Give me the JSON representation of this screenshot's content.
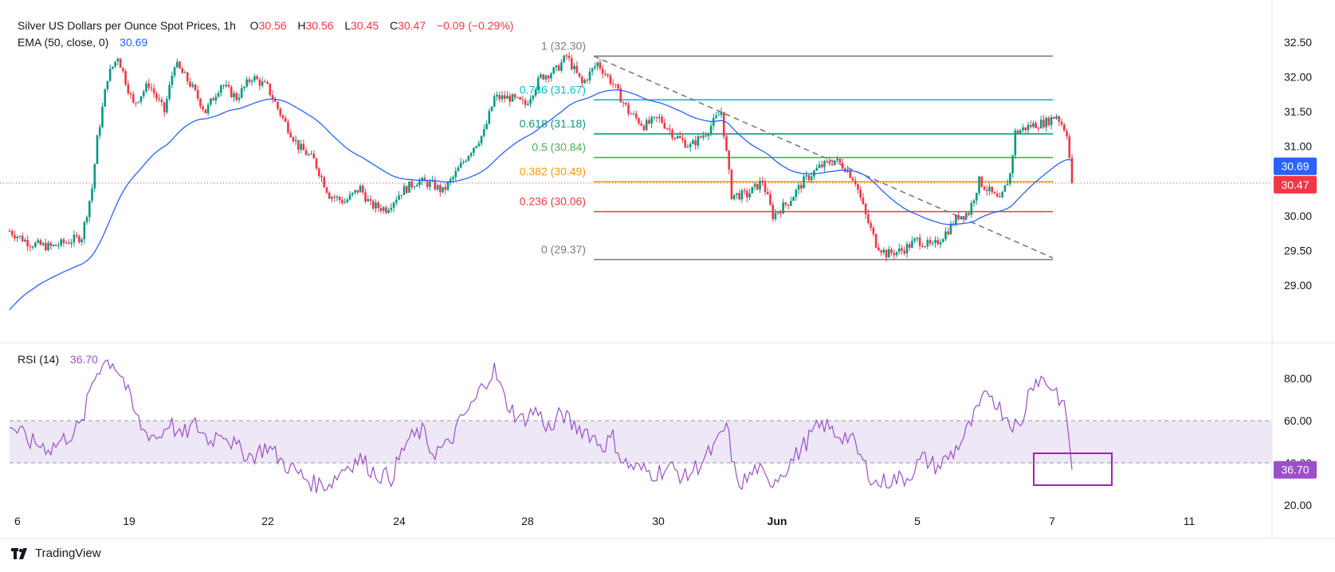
{
  "header": {
    "title": "Silver US Dollars per Ounce Spot Prices, 1h",
    "o_label": "O",
    "o_value": "30.56",
    "h_label": "H",
    "h_value": "30.56",
    "l_label": "L",
    "l_value": "30.45",
    "c_label": "C",
    "c_value": "30.47",
    "change": "−0.09 (−0.29%)",
    "ema_label": "EMA (50, close, 0)",
    "ema_value": "30.69",
    "rsi_label": "RSI (14)",
    "rsi_value": "36.70"
  },
  "footer": {
    "brand": "TradingView"
  },
  "colors": {
    "up": "#089981",
    "down": "#f23645",
    "ema": "#2962ff",
    "rsi": "#9c4fc8",
    "rsi_band": "#ede7f6",
    "fib_0": "#787b86",
    "fib_236": "#f23645",
    "fib_382": "#ff9800",
    "fib_5": "#4caf50",
    "fib_618": "#089981",
    "fib_786": "#00bcd4",
    "fib_1": "#787b86",
    "trend": "#787b86"
  },
  "chart_data": [
    {
      "type": "candlestick",
      "title": "Silver US Dollars per Ounce Spot Prices, 1h",
      "x_tick_labels": [
        "6",
        "19",
        "22",
        "24",
        "28",
        "30",
        "Jun",
        "5",
        "7",
        "11"
      ],
      "y_tick_labels": [
        "32.50",
        "32.00",
        "31.50",
        "31.00",
        "30.50",
        "30.00",
        "29.50",
        "29.00"
      ],
      "ylim": [
        28.75,
        32.75
      ],
      "last_price": 30.47,
      "last_price_label": "30.47",
      "ema_period": 50,
      "ema_last": 30.69,
      "ema_last_label": "30.69",
      "fibonacci_levels": [
        {
          "label": "1 (32.30)",
          "value": 32.3
        },
        {
          "label": "0.786 (31.67)",
          "value": 31.67
        },
        {
          "label": "0.618 (31.18)",
          "value": 31.18
        },
        {
          "label": "0.5 (30.84)",
          "value": 30.84
        },
        {
          "label": "0.382 (30.49)",
          "value": 30.49
        },
        {
          "label": "0.236 (30.06)",
          "value": 30.06
        },
        {
          "label": "0 (29.37)",
          "value": 29.37
        }
      ],
      "price_path_approx": [
        [
          0,
          29.78
        ],
        [
          8,
          29.6
        ],
        [
          16,
          29.55
        ],
        [
          22,
          29.62
        ],
        [
          28,
          29.7
        ],
        [
          32,
          30.4
        ],
        [
          34,
          31.1
        ],
        [
          38,
          32.0
        ],
        [
          42,
          32.3
        ],
        [
          48,
          31.6
        ],
        [
          54,
          31.9
        ],
        [
          60,
          31.5
        ],
        [
          64,
          32.2
        ],
        [
          70,
          31.9
        ],
        [
          76,
          31.5
        ],
        [
          82,
          31.9
        ],
        [
          88,
          31.7
        ],
        [
          94,
          32.0
        ],
        [
          100,
          31.85
        ],
        [
          106,
          31.4
        ],
        [
          112,
          31.0
        ],
        [
          118,
          30.8
        ],
        [
          124,
          30.3
        ],
        [
          130,
          30.2
        ],
        [
          136,
          30.4
        ],
        [
          140,
          30.15
        ],
        [
          146,
          30.1
        ],
        [
          152,
          30.35
        ],
        [
          158,
          30.5
        ],
        [
          164,
          30.45
        ],
        [
          168,
          30.35
        ],
        [
          172,
          30.55
        ],
        [
          178,
          30.9
        ],
        [
          184,
          31.2
        ],
        [
          188,
          31.7
        ],
        [
          194,
          31.7
        ],
        [
          200,
          31.6
        ],
        [
          206,
          32.0
        ],
        [
          212,
          32.1
        ],
        [
          216,
          32.3
        ],
        [
          222,
          31.9
        ],
        [
          228,
          32.2
        ],
        [
          234,
          31.9
        ],
        [
          240,
          31.5
        ],
        [
          246,
          31.3
        ],
        [
          252,
          31.4
        ],
        [
          258,
          31.15
        ],
        [
          264,
          31.0
        ],
        [
          270,
          31.2
        ],
        [
          276,
          31.5
        ],
        [
          280,
          30.3
        ],
        [
          286,
          30.3
        ],
        [
          292,
          30.5
        ],
        [
          296,
          30.0
        ],
        [
          302,
          30.2
        ],
        [
          308,
          30.5
        ],
        [
          314,
          30.7
        ],
        [
          320,
          30.8
        ],
        [
          324,
          30.7
        ],
        [
          328,
          30.5
        ],
        [
          332,
          30.0
        ],
        [
          336,
          29.6
        ],
        [
          340,
          29.45
        ],
        [
          346,
          29.5
        ],
        [
          352,
          29.65
        ],
        [
          358,
          29.55
        ],
        [
          364,
          29.8
        ],
        [
          368,
          30.0
        ],
        [
          372,
          30.05
        ],
        [
          376,
          30.5
        ],
        [
          380,
          30.35
        ],
        [
          384,
          30.2
        ],
        [
          388,
          30.6
        ],
        [
          390,
          31.2
        ],
        [
          396,
          31.3
        ],
        [
          402,
          31.35
        ],
        [
          406,
          31.45
        ],
        [
          410,
          31.2
        ],
        [
          412,
          30.47
        ]
      ]
    },
    {
      "type": "line",
      "title": "RSI (14)",
      "y_tick_labels": [
        "80.00",
        "60.00",
        "40.00",
        "20.00"
      ],
      "ylim": [
        15,
        93
      ],
      "bands": [
        40,
        60
      ],
      "last_value": 36.7,
      "last_value_label": "36.70",
      "values_approx": [
        [
          0,
          58
        ],
        [
          8,
          50
        ],
        [
          16,
          47
        ],
        [
          22,
          52
        ],
        [
          28,
          58
        ],
        [
          32,
          78
        ],
        [
          36,
          88
        ],
        [
          40,
          88
        ],
        [
          44,
          80
        ],
        [
          48,
          65
        ],
        [
          52,
          55
        ],
        [
          58,
          52
        ],
        [
          62,
          60
        ],
        [
          66,
          52
        ],
        [
          72,
          58
        ],
        [
          78,
          50
        ],
        [
          82,
          56
        ],
        [
          88,
          47
        ],
        [
          94,
          43
        ],
        [
          100,
          48
        ],
        [
          106,
          40
        ],
        [
          112,
          35
        ],
        [
          118,
          30
        ],
        [
          124,
          30
        ],
        [
          130,
          38
        ],
        [
          136,
          42
        ],
        [
          142,
          35
        ],
        [
          148,
          33
        ],
        [
          154,
          50
        ],
        [
          160,
          55
        ],
        [
          164,
          45
        ],
        [
          170,
          48
        ],
        [
          176,
          62
        ],
        [
          180,
          68
        ],
        [
          184,
          78
        ],
        [
          188,
          84
        ],
        [
          192,
          70
        ],
        [
          198,
          60
        ],
        [
          204,
          65
        ],
        [
          210,
          55
        ],
        [
          214,
          64
        ],
        [
          218,
          58
        ],
        [
          224,
          55
        ],
        [
          230,
          48
        ],
        [
          234,
          52
        ],
        [
          238,
          40
        ],
        [
          244,
          37
        ],
        [
          250,
          35
        ],
        [
          256,
          38
        ],
        [
          262,
          33
        ],
        [
          268,
          40
        ],
        [
          274,
          48
        ],
        [
          278,
          58
        ],
        [
          282,
          30
        ],
        [
          286,
          32
        ],
        [
          290,
          38
        ],
        [
          294,
          30
        ],
        [
          300,
          36
        ],
        [
          306,
          45
        ],
        [
          312,
          55
        ],
        [
          316,
          58
        ],
        [
          320,
          54
        ],
        [
          326,
          52
        ],
        [
          332,
          38
        ],
        [
          336,
          30
        ],
        [
          342,
          32
        ],
        [
          348,
          33
        ],
        [
          354,
          42
        ],
        [
          360,
          38
        ],
        [
          366,
          45
        ],
        [
          370,
          52
        ],
        [
          376,
          66
        ],
        [
          380,
          74
        ],
        [
          384,
          66
        ],
        [
          388,
          60
        ],
        [
          392,
          56
        ],
        [
          396,
          78
        ],
        [
          400,
          80
        ],
        [
          406,
          74
        ],
        [
          410,
          62
        ],
        [
          412,
          36.7
        ]
      ]
    }
  ]
}
